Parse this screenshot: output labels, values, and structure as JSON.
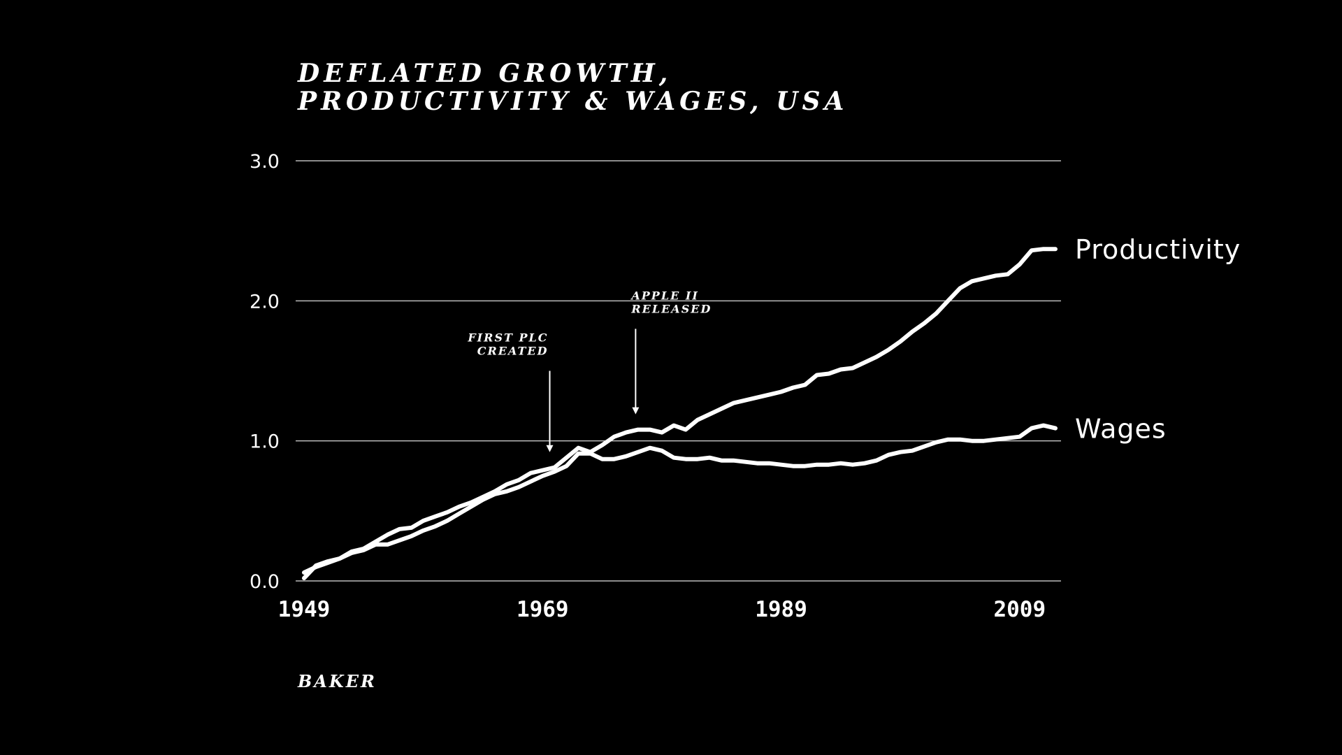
{
  "chart_data": {
    "type": "line",
    "title_lines": [
      "Deflated growth,",
      "Productivity & wages, USA"
    ],
    "source": "BAKER",
    "xlabel": "",
    "ylabel": "",
    "xlim": [
      1949,
      2012
    ],
    "ylim": [
      0.0,
      3.0
    ],
    "x_ticks": [
      1949,
      1969,
      1989,
      2009
    ],
    "x_tick_labels": [
      "1949",
      "1969",
      "1989",
      "2009"
    ],
    "y_ticks": [
      0,
      1,
      2,
      3
    ],
    "y_tick_labels": [
      "0.0",
      "1.0",
      "2.0",
      "3.0"
    ],
    "grid": true,
    "x": [
      1949,
      1950,
      1951,
      1952,
      1953,
      1954,
      1955,
      1956,
      1957,
      1958,
      1959,
      1960,
      1961,
      1962,
      1963,
      1964,
      1965,
      1966,
      1967,
      1968,
      1969,
      1970,
      1971,
      1972,
      1973,
      1974,
      1975,
      1976,
      1977,
      1978,
      1979,
      1980,
      1981,
      1982,
      1983,
      1984,
      1985,
      1986,
      1987,
      1988,
      1989,
      1990,
      1991,
      1992,
      1993,
      1994,
      1995,
      1996,
      1997,
      1998,
      1999,
      2000,
      2001,
      2002,
      2003,
      2004,
      2005,
      2006,
      2007,
      2008,
      2009,
      2010,
      2011,
      2012
    ],
    "series": [
      {
        "name": "Productivity",
        "values": [
          0.02,
          0.11,
          0.14,
          0.16,
          0.21,
          0.23,
          0.28,
          0.33,
          0.37,
          0.38,
          0.43,
          0.46,
          0.49,
          0.53,
          0.56,
          0.6,
          0.64,
          0.69,
          0.72,
          0.77,
          0.79,
          0.81,
          0.88,
          0.95,
          0.92,
          0.97,
          1.03,
          1.06,
          1.08,
          1.08,
          1.06,
          1.11,
          1.08,
          1.15,
          1.19,
          1.23,
          1.27,
          1.29,
          1.31,
          1.33,
          1.35,
          1.38,
          1.4,
          1.47,
          1.48,
          1.51,
          1.52,
          1.56,
          1.6,
          1.65,
          1.71,
          1.78,
          1.84,
          1.91,
          2.0,
          2.09,
          2.14,
          2.16,
          2.18,
          2.19,
          2.26,
          2.36,
          2.37,
          2.37
        ]
      },
      {
        "name": "Wages",
        "values": [
          0.06,
          0.1,
          0.13,
          0.16,
          0.2,
          0.22,
          0.26,
          0.26,
          0.29,
          0.32,
          0.36,
          0.39,
          0.43,
          0.48,
          0.53,
          0.58,
          0.62,
          0.64,
          0.67,
          0.71,
          0.75,
          0.78,
          0.82,
          0.91,
          0.91,
          0.87,
          0.87,
          0.89,
          0.92,
          0.95,
          0.93,
          0.88,
          0.87,
          0.87,
          0.88,
          0.86,
          0.86,
          0.85,
          0.84,
          0.84,
          0.83,
          0.82,
          0.82,
          0.83,
          0.83,
          0.84,
          0.83,
          0.84,
          0.86,
          0.9,
          0.92,
          0.93,
          0.96,
          0.99,
          1.01,
          1.01,
          1.0,
          1.0,
          1.01,
          1.02,
          1.03,
          1.09,
          1.11,
          1.09
        ]
      }
    ],
    "annotations": [
      {
        "lines": [
          "FIRST PLC",
          "CREATED"
        ],
        "x": 1969.6,
        "arrow_top_y": 1.5,
        "arrow_bottom_y": 0.92
      },
      {
        "lines": [
          "APPLE II",
          "RELEASED"
        ],
        "x": 1976.8,
        "arrow_top_y": 1.8,
        "arrow_bottom_y": 1.19
      }
    ],
    "colors": {
      "background": "#000000",
      "lines": "#ffffff",
      "grid": "#bbbbbb"
    }
  }
}
